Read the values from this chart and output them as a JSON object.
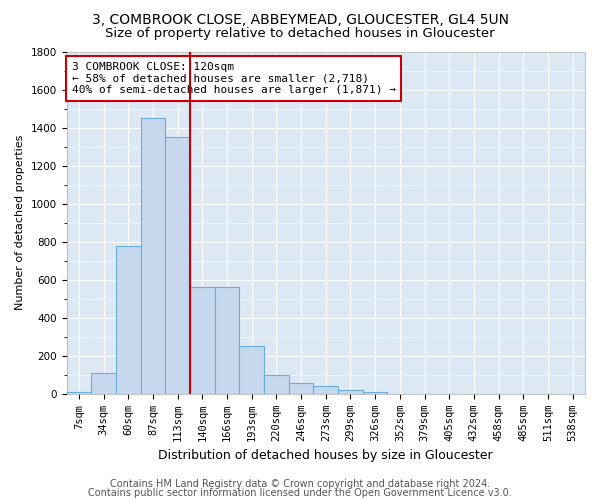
{
  "title1": "3, COMBROOK CLOSE, ABBEYMEAD, GLOUCESTER, GL4 5UN",
  "title2": "Size of property relative to detached houses in Gloucester",
  "xlabel": "Distribution of detached houses by size in Gloucester",
  "ylabel": "Number of detached properties",
  "bar_labels": [
    "7sqm",
    "34sqm",
    "60sqm",
    "87sqm",
    "113sqm",
    "140sqm",
    "166sqm",
    "193sqm",
    "220sqm",
    "246sqm",
    "273sqm",
    "299sqm",
    "326sqm",
    "352sqm",
    "379sqm",
    "405sqm",
    "432sqm",
    "458sqm",
    "485sqm",
    "511sqm",
    "538sqm"
  ],
  "bar_values": [
    10,
    110,
    780,
    1450,
    1350,
    560,
    560,
    250,
    100,
    55,
    40,
    20,
    10,
    0,
    0,
    0,
    0,
    0,
    0,
    0,
    0
  ],
  "bar_color": "#c5d8ee",
  "bar_edge_color": "#6baed6",
  "vline_color": "#cc0000",
  "ylim": [
    0,
    1800
  ],
  "yticks": [
    0,
    200,
    400,
    600,
    800,
    1000,
    1200,
    1400,
    1600,
    1800
  ],
  "annotation_text": "3 COMBROOK CLOSE: 120sqm\n← 58% of detached houses are smaller (2,718)\n40% of semi-detached houses are larger (1,871) →",
  "annotation_box_color": "#ffffff",
  "annotation_box_edge": "#cc0000",
  "footer1": "Contains HM Land Registry data © Crown copyright and database right 2024.",
  "footer2": "Contains public sector information licensed under the Open Government Licence v3.0.",
  "fig_bg_color": "#ffffff",
  "plot_bg_color": "#dde8f5",
  "grid_color": "#ffffff",
  "title1_fontsize": 10,
  "title2_fontsize": 9.5,
  "xlabel_fontsize": 9,
  "ylabel_fontsize": 8,
  "tick_fontsize": 7.5,
  "footer_fontsize": 7,
  "ann_fontsize": 8
}
